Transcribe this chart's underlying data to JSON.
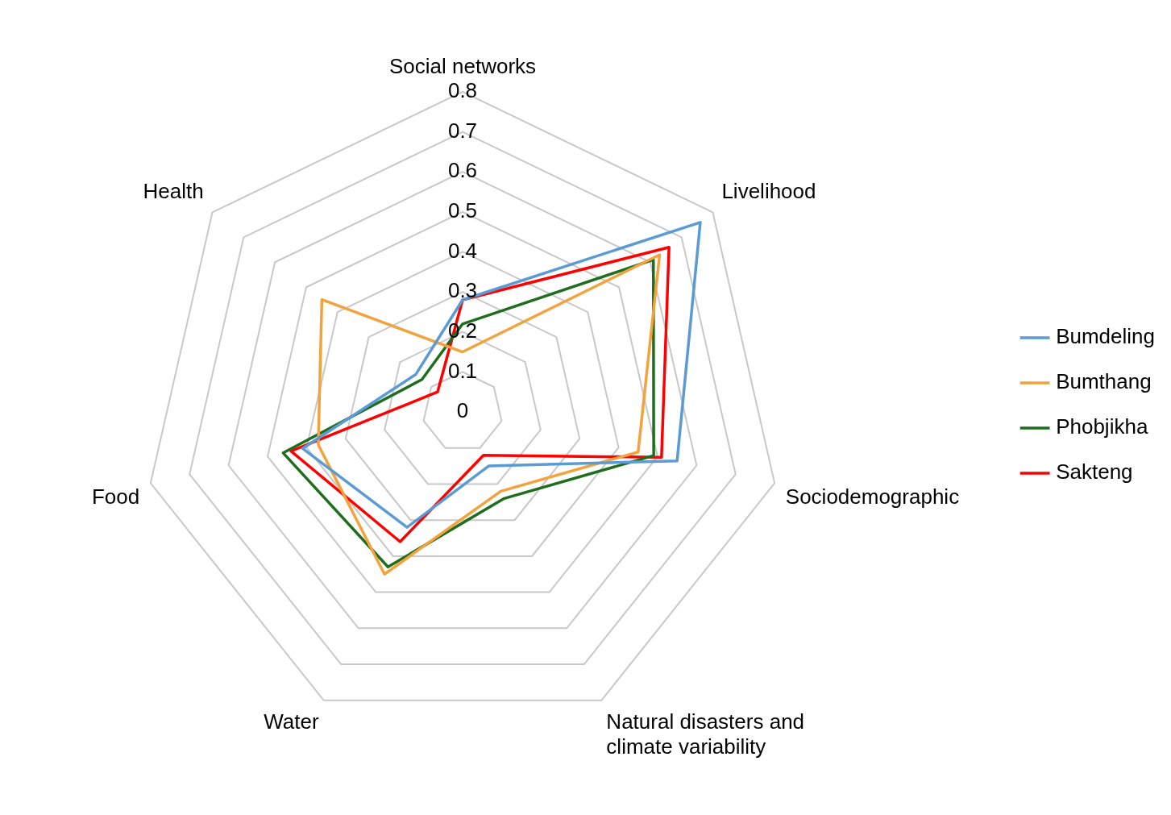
{
  "chart_data": {
    "type": "radar",
    "categories": [
      "Social networks",
      "Livelihood",
      "Sociodemographic",
      "Natural disasters and climate variability",
      "Water",
      "Food",
      "Health"
    ],
    "series": [
      {
        "name": "Bumdeling",
        "color": "#5b9bd5",
        "values": [
          0.28,
          0.76,
          0.55,
          0.15,
          0.32,
          0.41,
          0.15
        ]
      },
      {
        "name": "Bumthang",
        "color": "#f4a23c",
        "values": [
          0.15,
          0.63,
          0.45,
          0.22,
          0.45,
          0.37,
          0.45
        ]
      },
      {
        "name": "Phobjikha",
        "color": "#1e6e1e",
        "values": [
          0.22,
          0.61,
          0.49,
          0.24,
          0.43,
          0.46,
          0.13
        ]
      },
      {
        "name": "Sakteng",
        "color": "#ff0000",
        "values": [
          0.28,
          0.66,
          0.51,
          0.12,
          0.36,
          0.44,
          0.08
        ]
      }
    ],
    "ylim": [
      0,
      0.8
    ],
    "yticks": [
      0,
      0.1,
      0.2,
      0.3,
      0.4,
      0.5,
      0.6,
      0.7,
      0.8
    ],
    "grid": true,
    "legend": "right",
    "marker": "none"
  }
}
